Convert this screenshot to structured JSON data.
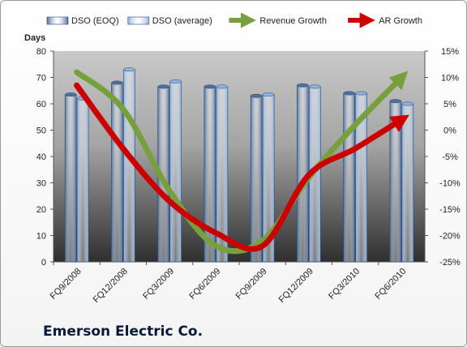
{
  "chart_data": {
    "type": "bar",
    "categories": [
      "FQ9/2008",
      "FQ12/2008",
      "FQ3/2009",
      "FQ6/2009",
      "FQ9/2009",
      "FQ12/2009",
      "FQ3/2010",
      "FQ6/2010"
    ],
    "series": [
      {
        "name": "DSO (EOQ)",
        "axis": "left",
        "kind": "bar",
        "color": "#4f6f9c",
        "values": [
          63.5,
          68,
          66.5,
          66.5,
          63,
          67,
          64,
          61
        ]
      },
      {
        "name": "DSO (average)",
        "axis": "left",
        "kind": "bar",
        "color": "#8eb1de",
        "values": [
          62,
          73,
          68.5,
          66.5,
          63.5,
          66.5,
          64,
          60
        ]
      },
      {
        "name": "Revenue Growth",
        "axis": "right",
        "kind": "arrow-line",
        "color": "#77a03c",
        "values": [
          11,
          4,
          -11.5,
          -22,
          -21,
          -9,
          1,
          10
        ]
      },
      {
        "name": "AR Growth",
        "axis": "right",
        "kind": "arrow-line",
        "color": "#cc0000",
        "values": [
          8.5,
          -3.5,
          -13.5,
          -19.5,
          -22,
          -8.5,
          -3.5,
          2
        ]
      }
    ],
    "ylabel": "Days",
    "ylim": [
      0,
      80
    ],
    "yticks": [
      "0",
      "10",
      "20",
      "30",
      "40",
      "50",
      "60",
      "70",
      "80"
    ],
    "y2lim": [
      -25,
      15
    ],
    "y2ticks": [
      "-25%",
      "-20%",
      "-15%",
      "-10%",
      "-5%",
      "0%",
      "5%",
      "10%",
      "15%"
    ],
    "legend": "top",
    "grid": false,
    "plot_background": [
      "#c9c9c9",
      "#2f2f2f"
    ],
    "company": "Emerson Electric Co."
  }
}
